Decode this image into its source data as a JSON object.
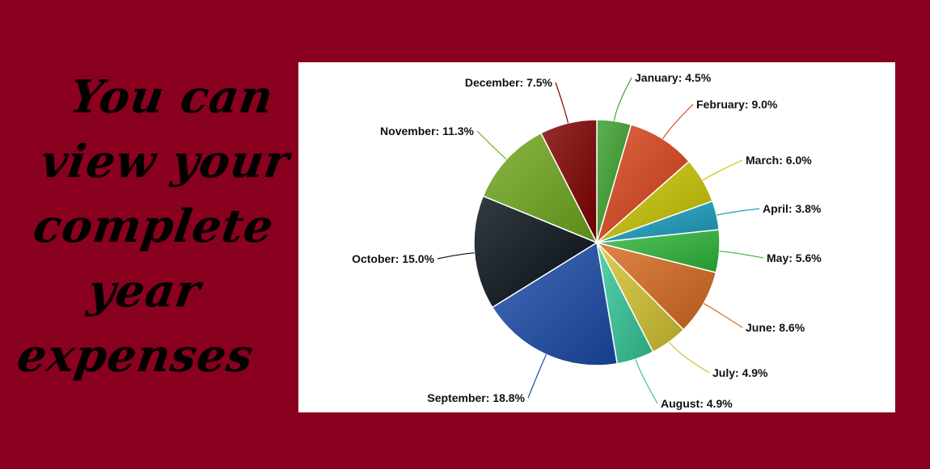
{
  "tagline": {
    "lines": [
      "You can",
      "view your",
      "complete",
      "year",
      "expenses"
    ]
  },
  "colors": {
    "background": "#8a001f",
    "panel": "#ffffff"
  },
  "chart_data": {
    "type": "pie",
    "title": "",
    "categories": [
      "January",
      "February",
      "March",
      "April",
      "May",
      "June",
      "July",
      "August",
      "September",
      "October",
      "November",
      "December"
    ],
    "values": [
      4.5,
      9.0,
      6.0,
      3.8,
      5.6,
      8.6,
      4.9,
      4.9,
      18.8,
      15.0,
      11.3,
      7.5
    ],
    "labels": [
      "January: 4.5%",
      "February: 9.0%",
      "March: 6.0%",
      "April: 3.8%",
      "May: 5.6%",
      "June: 8.6%",
      "July: 4.9%",
      "August: 4.9%",
      "September: 18.8%",
      "October: 15.0%",
      "November: 11.3%",
      "December: 7.5%"
    ],
    "colors": [
      "#3aa02a",
      "#d9431a",
      "#c8c400",
      "#1aa0c0",
      "#2eb83a",
      "#d86a20",
      "#d4c430",
      "#35c89a",
      "#1a4aa8",
      "#081018",
      "#70a81e",
      "#800000"
    ],
    "start": "12 o'clock, clockwise",
    "legend": "none (data labels with leader lines)"
  }
}
